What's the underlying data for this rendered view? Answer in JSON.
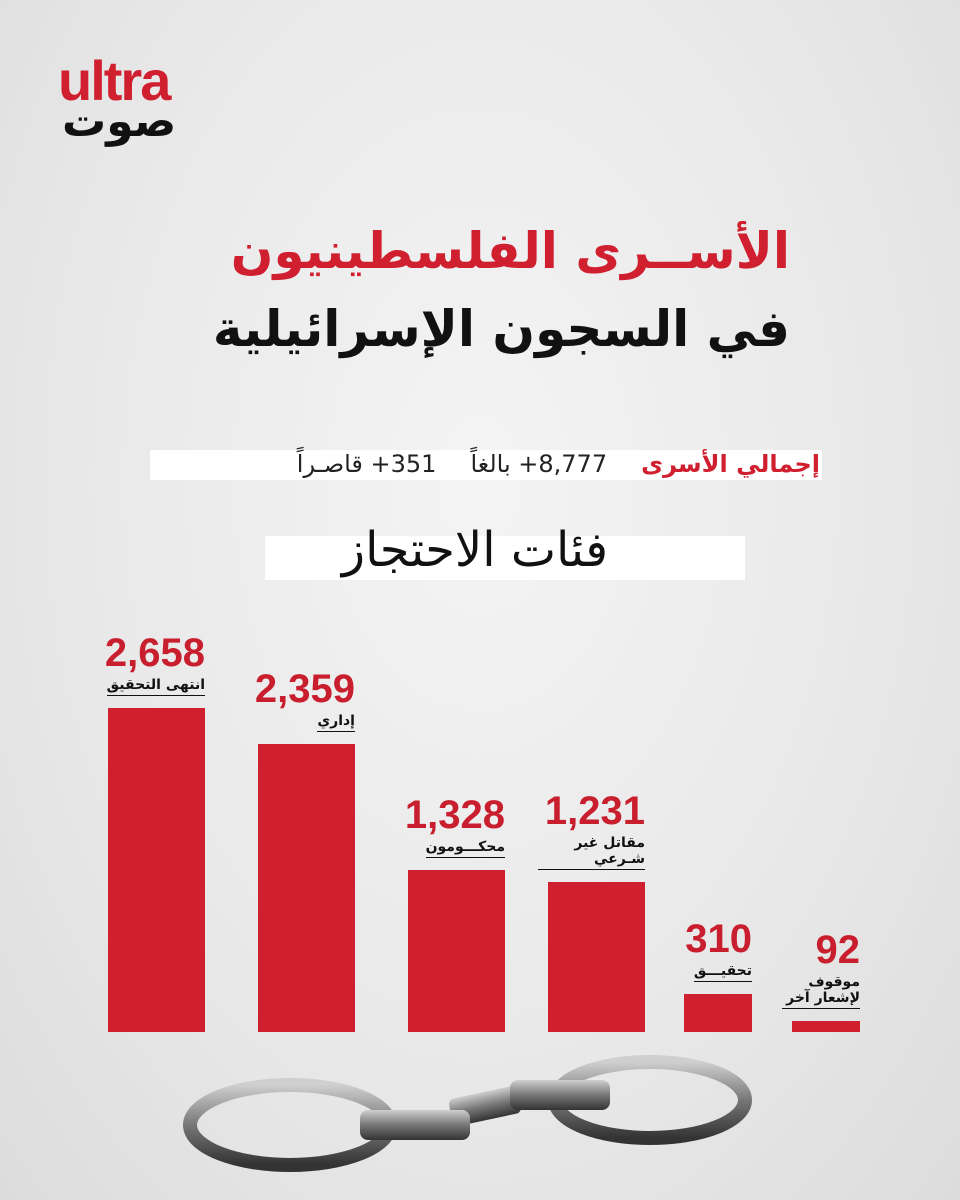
{
  "logo": {
    "latin": "ultra",
    "arabic": "صوت"
  },
  "header": {
    "title_line1": "الأســرى الفلسطينيون",
    "title_line2": "في السجون الإسرائيلية"
  },
  "summary": {
    "label": "إجمالي الأسرى",
    "adults": "8,777+ بالغاً",
    "minors": "351+ قاصـراً"
  },
  "chart_data": {
    "type": "bar",
    "title": "فئات الاحتجاز",
    "categories": [
      "انتهى التحقيق",
      "إداري",
      "محكـــومون",
      "مقاتل غير شـرعي",
      "تحقيـــق",
      "موقوف لإشعار آخر"
    ],
    "values": [
      2658,
      2359,
      1328,
      1231,
      310,
      92
    ],
    "value_labels": [
      "2,658",
      "2,359",
      "1,328",
      "1,231",
      "310",
      "92"
    ],
    "color": "#d01f2f"
  }
}
